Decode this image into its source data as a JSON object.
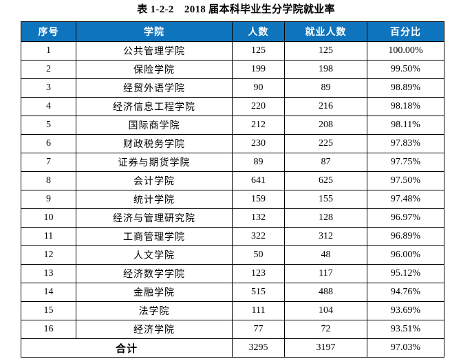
{
  "title": "表 1-2-2　2018 届本科毕业生分学院就业率",
  "colors": {
    "header_bg": "#0e74bd",
    "header_fg": "#ffffff",
    "border": "#000000",
    "page_bg": "#ffffff"
  },
  "table": {
    "columns": [
      "序号",
      "学院",
      "人数",
      "就业人数",
      "百分比"
    ],
    "rows": [
      [
        "1",
        "公共管理学院",
        "125",
        "125",
        "100.00%"
      ],
      [
        "2",
        "保险学院",
        "199",
        "198",
        "99.50%"
      ],
      [
        "3",
        "经贸外语学院",
        "90",
        "89",
        "98.89%"
      ],
      [
        "4",
        "经济信息工程学院",
        "220",
        "216",
        "98.18%"
      ],
      [
        "5",
        "国际商学院",
        "212",
        "208",
        "98.11%"
      ],
      [
        "6",
        "财政税务学院",
        "230",
        "225",
        "97.83%"
      ],
      [
        "7",
        "证券与期货学院",
        "89",
        "87",
        "97.75%"
      ],
      [
        "8",
        "会计学院",
        "641",
        "625",
        "97.50%"
      ],
      [
        "9",
        "统计学院",
        "159",
        "155",
        "97.48%"
      ],
      [
        "10",
        "经济与管理研究院",
        "132",
        "128",
        "96.97%"
      ],
      [
        "11",
        "工商管理学院",
        "322",
        "312",
        "96.89%"
      ],
      [
        "12",
        "人文学院",
        "50",
        "48",
        "96.00%"
      ],
      [
        "13",
        "经济数学学院",
        "123",
        "117",
        "95.12%"
      ],
      [
        "14",
        "金融学院",
        "515",
        "488",
        "94.76%"
      ],
      [
        "15",
        "法学院",
        "111",
        "104",
        "93.69%"
      ],
      [
        "16",
        "经济学院",
        "77",
        "72",
        "93.51%"
      ]
    ],
    "total": {
      "label": "合计",
      "count": "3295",
      "employed": "3197",
      "percent": "97.03%"
    }
  }
}
